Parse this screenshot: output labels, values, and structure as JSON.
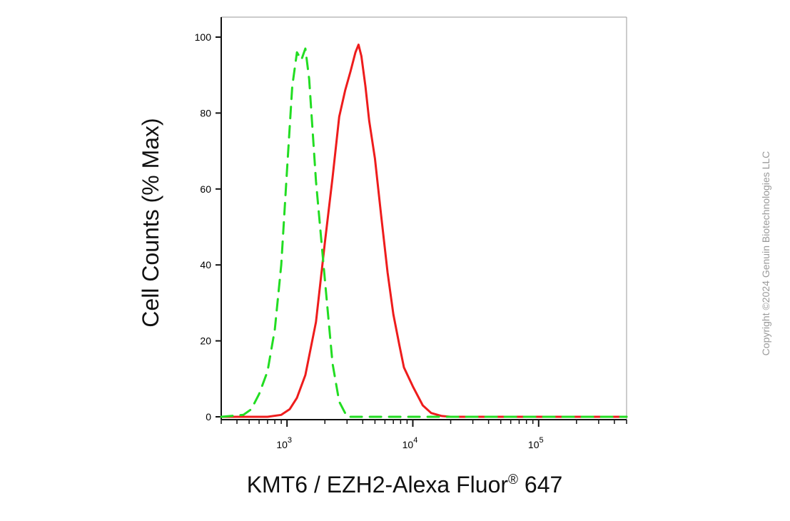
{
  "chart_data": {
    "type": "line",
    "title": "",
    "xlabel": "KMT6 / EZH2-Alexa Fluor",
    "xlabel_superscript": "®",
    "xlabel_suffix": " 647",
    "ylabel": "Cell Counts (% Max)",
    "x_scale": "log",
    "xlim": [
      300,
      500000
    ],
    "ylim": [
      0,
      100
    ],
    "x_tick_labels": [
      {
        "base": "10",
        "exp": "3",
        "value": 1000
      },
      {
        "base": "10",
        "exp": "4",
        "value": 10000
      },
      {
        "base": "10",
        "exp": "5",
        "value": 100000
      }
    ],
    "y_ticks": [
      0,
      20,
      40,
      60,
      80,
      100
    ],
    "y_tick_labels": [
      "0",
      "20",
      "40",
      "60",
      "80",
      "100"
    ],
    "grid": false,
    "legend": "none",
    "series": [
      {
        "color": "#ee1c1c",
        "style": "solid",
        "x": [
          300,
          700,
          900,
          1050,
          1200,
          1400,
          1700,
          2000,
          2300,
          2600,
          2900,
          3200,
          3500,
          3700,
          3900,
          4200,
          4500,
          5000,
          5600,
          6300,
          7000,
          7800,
          8500,
          10000,
          12000,
          14000,
          17000,
          20000,
          50000,
          100000,
          200000,
          500000
        ],
        "y": [
          0,
          0,
          0.5,
          2,
          5,
          11,
          25,
          46,
          63,
          79,
          86,
          91,
          96,
          98,
          95,
          87,
          78,
          68,
          53,
          38,
          27,
          19,
          13,
          8,
          3,
          1,
          0.2,
          0,
          0,
          0,
          0,
          0
        ]
      },
      {
        "color": "#22dd22",
        "style": "dashed",
        "x": [
          300,
          450,
          520,
          600,
          700,
          800,
          900,
          1000,
          1100,
          1200,
          1300,
          1400,
          1500,
          1700,
          2000,
          2300,
          2600,
          3000,
          10000,
          100000,
          500000
        ],
        "y": [
          0,
          0.5,
          2,
          6,
          12,
          23,
          40,
          65,
          87,
          96,
          94,
          97,
          89,
          62,
          36,
          14,
          4,
          0,
          0,
          0,
          0
        ]
      }
    ]
  },
  "watermark": "Copyright ©2024 Genuin Biotechnologies LLC"
}
